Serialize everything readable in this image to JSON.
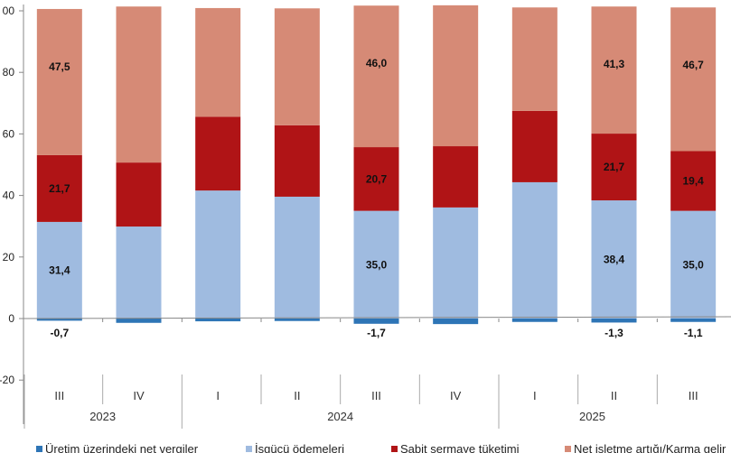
{
  "chart_data": {
    "type": "bar",
    "stacked": true,
    "title": "",
    "xlabel": "",
    "ylabel": "",
    "ylim": [
      -20,
      100
    ],
    "yticks": [
      -20,
      0,
      20,
      40,
      60,
      80,
      100
    ],
    "ytick_labels": [
      "-20",
      "0",
      "20",
      "40",
      "60",
      "80",
      "00"
    ],
    "grid": false,
    "legend_position": "bottom",
    "categories": [
      "III",
      "IV",
      "I",
      "II",
      "III",
      "IV",
      "I",
      "II",
      "III"
    ],
    "years": [
      {
        "label": "2023",
        "span": 2
      },
      {
        "label": "2024",
        "span": 4
      },
      {
        "label": "2025",
        "span": 3
      }
    ],
    "series": [
      {
        "name": "Üretim üzerindeki net vergiler",
        "color": "#2e75b6",
        "values": [
          -0.7,
          -1.4,
          -0.9,
          -0.8,
          -1.7,
          -1.8,
          -1.1,
          -1.3,
          -1.1
        ],
        "labels": [
          "-0,7",
          "",
          "",
          "",
          "-1,7",
          "",
          "",
          "-1,3",
          "-1,1"
        ]
      },
      {
        "name": "İşgücü ödemeleri",
        "color": "#9fbbe0",
        "values": [
          31.4,
          29.9,
          41.6,
          39.6,
          35.0,
          36.1,
          44.3,
          38.4,
          35.0
        ],
        "labels": [
          "31,4",
          "",
          "",
          "",
          "35,0",
          "",
          "",
          "38,4",
          "35,0"
        ]
      },
      {
        "name": "Sabit sermaye tüketimi",
        "color": "#b01416",
        "values": [
          21.7,
          20.8,
          24.0,
          23.2,
          20.7,
          19.9,
          23.2,
          21.7,
          19.4
        ],
        "labels": [
          "21,7",
          "",
          "",
          "",
          "20,7",
          "",
          "",
          "21,7",
          "19,4"
        ]
      },
      {
        "name": "Net işletme artığı/Karma gelir",
        "color": "#d68a76",
        "values": [
          47.5,
          50.7,
          35.3,
          38.0,
          46.0,
          45.8,
          33.6,
          41.3,
          46.7
        ],
        "labels": [
          "47,5",
          "",
          "",
          "",
          "46,0",
          "",
          "",
          "41,3",
          "46,7"
        ]
      }
    ]
  }
}
